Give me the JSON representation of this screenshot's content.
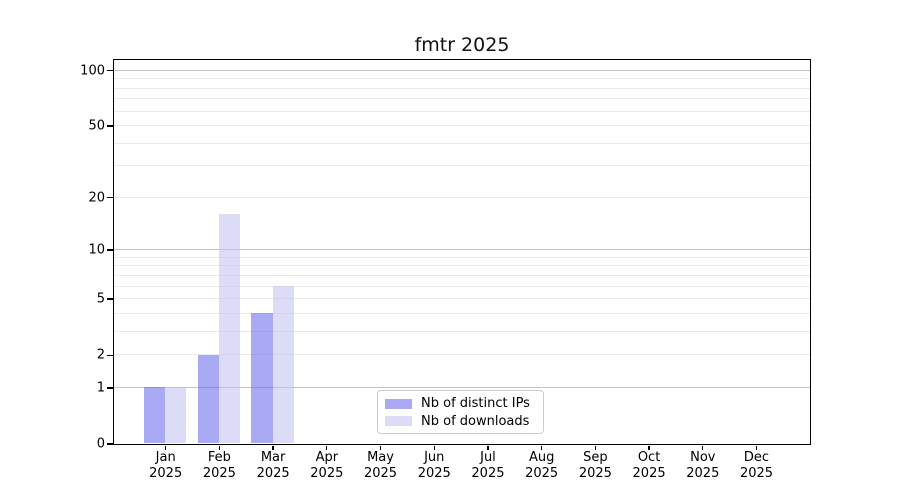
{
  "chart_data": {
    "type": "bar",
    "title": "fmtr 2025",
    "categories": [
      "Jan",
      "Feb",
      "Mar",
      "Apr",
      "May",
      "Jun",
      "Jul",
      "Aug",
      "Sep",
      "Oct",
      "Nov",
      "Dec"
    ],
    "x_year_label": "2025",
    "series": [
      {
        "name": "Nb of distinct IPs",
        "color_hex": "#aaaaf4",
        "fill": "rgba(100,100,235,0.55)",
        "values": [
          1,
          2,
          4,
          0,
          0,
          0,
          0,
          0,
          0,
          0,
          0,
          0
        ]
      },
      {
        "name": "Nb of downloads",
        "color_hex": "#dcdcf5",
        "fill": "rgba(191,191,239,0.55)",
        "values": [
          1,
          16,
          6,
          0,
          0,
          0,
          0,
          0,
          0,
          0,
          0,
          0
        ]
      }
    ],
    "y_axis": {
      "scale": "log10(1+value)",
      "tick_values": [
        0,
        1,
        2,
        5,
        10,
        20,
        50,
        100
      ],
      "major_gridline_values": [
        1,
        10,
        100
      ],
      "minor_gridline_values": [
        2,
        3,
        4,
        5,
        6,
        7,
        8,
        9,
        20,
        30,
        40,
        50,
        60,
        70,
        80,
        90
      ],
      "range": [
        0,
        114
      ]
    },
    "legend_position": "lower center",
    "grid": true,
    "colors": {
      "axis": "#000000",
      "major_grid": "#c3c3c3",
      "minor_grid": "#eaeaea",
      "legend_border": "#cbcbcb",
      "text": "#000000",
      "background": "#ffffff"
    }
  }
}
